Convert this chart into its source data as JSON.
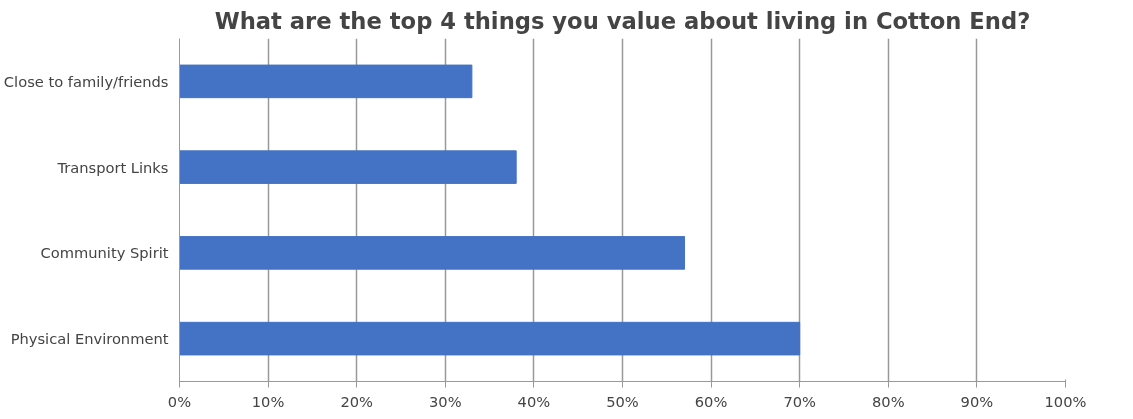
{
  "chart_data": {
    "type": "bar",
    "orientation": "horizontal",
    "title": "What are the top 4 things you value about living in Cotton End?",
    "categories": [
      "Close to family/friends",
      "Transport Links",
      "Community Spirit",
      "Physical Environment"
    ],
    "values": [
      33,
      38,
      57,
      70
    ],
    "color": "#4472c4",
    "xlim": [
      0,
      100
    ],
    "xticks": [
      {
        "value": 0,
        "label": "0%"
      },
      {
        "value": 10,
        "label": "10%"
      },
      {
        "value": 20,
        "label": "20%"
      },
      {
        "value": 30,
        "label": "30%"
      },
      {
        "value": 40,
        "label": "40%"
      },
      {
        "value": 50,
        "label": "50%"
      },
      {
        "value": 60,
        "label": "60%"
      },
      {
        "value": 70,
        "label": "70%"
      },
      {
        "value": 80,
        "label": "80%"
      },
      {
        "value": 90,
        "label": "90%"
      },
      {
        "value": 100,
        "label": "100%"
      }
    ],
    "grid": "x"
  }
}
